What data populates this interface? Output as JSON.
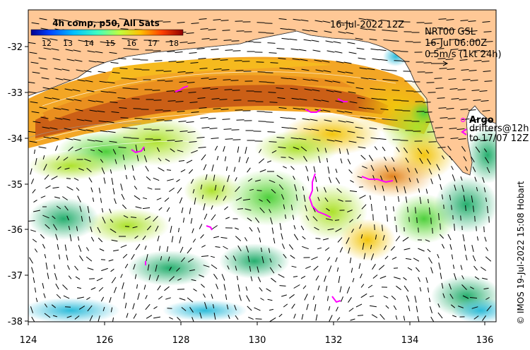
{
  "map": {
    "date_label": "16-Jul-2022 12Z",
    "product_label": "4h comp, p50, All Sats",
    "colorbar": {
      "ticks": [
        "12",
        "13",
        "14",
        "15",
        "16",
        "17",
        "18"
      ],
      "min": 11.5,
      "max": 18.5,
      "colors": [
        "#00008f",
        "#0040ff",
        "#00bfff",
        "#40ffbf",
        "#bfff40",
        "#ffbf00",
        "#ff4000",
        "#8f0000"
      ]
    },
    "current_info": {
      "line1": "NRT00 GSL",
      "line2": "16-Jul 06:00Z",
      "line3": "0.5m/s (1kt 24h)"
    },
    "legend": {
      "argo_label": "Argo",
      "drifters_label": "drifters@12h",
      "drifters_label2": "to 17/07 12Z",
      "argo_color": "#ff00ff",
      "drifter_color": "#ff00ff"
    },
    "x_axis": {
      "ticks": [
        "124",
        "126",
        "128",
        "130",
        "132",
        "134",
        "136"
      ],
      "range": [
        124,
        136.5
      ]
    },
    "y_axis": {
      "ticks": [
        "-32",
        "-33",
        "-34",
        "-35",
        "-36",
        "-37",
        "-38"
      ],
      "range": [
        -38,
        -31.3
      ]
    },
    "credit": "© IMOS 19-Jul-2022 15:08 Hobart",
    "land_color": "#ffc896"
  }
}
